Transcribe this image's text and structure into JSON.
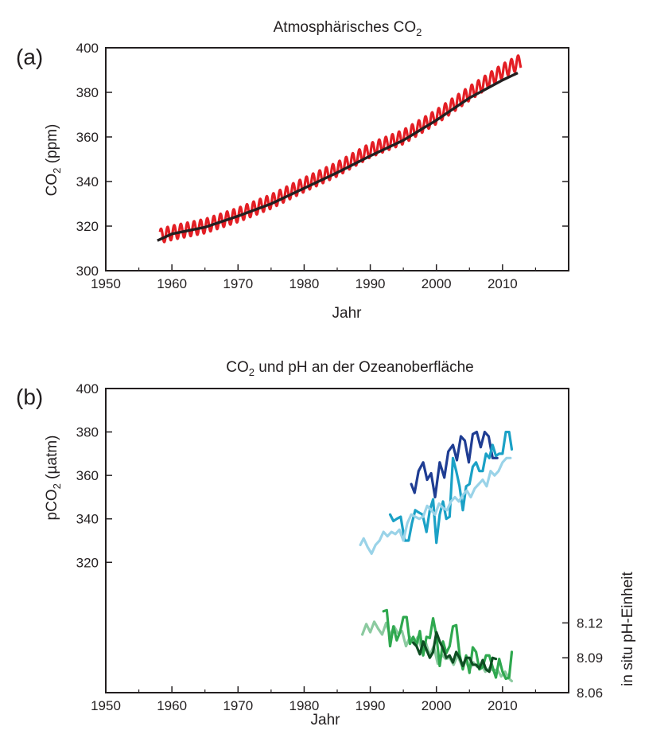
{
  "chart_data": [
    {
      "panel_label": "(a)",
      "type": "line",
      "title": "Atmosphärisches CO",
      "title_sub": "2",
      "xlabel": "Jahr",
      "ylabel": "CO",
      "ylabel_sub": "2",
      "ylabel_unit": " (ppm)",
      "xlim": [
        1950,
        2020
      ],
      "ylim": [
        300,
        400
      ],
      "xticks": [
        1950,
        1960,
        1970,
        1980,
        1990,
        2000,
        2010
      ],
      "yticks": [
        300,
        320,
        340,
        360,
        380,
        400
      ],
      "grid": false,
      "series": [
        {
          "color": "#e31e24",
          "seasonal_amplitude": 3.2,
          "x": [
            1958.2,
            1960,
            1965,
            1970,
            1975,
            1980,
            1985,
            1990,
            1995,
            2000,
            2005,
            2010,
            2012.8
          ],
          "values": [
            315.5,
            317,
            320,
            325,
            331,
            338.5,
            345.5,
            354,
            360,
            369,
            379.5,
            389.5,
            394
          ]
        },
        {
          "color": "#231f20",
          "seasonal_amplitude": 0,
          "x": [
            1957.8,
            1960,
            1965,
            1970,
            1975,
            1980,
            1985,
            1990,
            1995,
            2000,
            2005,
            2010,
            2012.5
          ],
          "values": [
            313.5,
            316.5,
            319.5,
            324.5,
            330,
            337,
            344,
            351.5,
            358.5,
            367.5,
            377.5,
            385.5,
            389
          ]
        }
      ]
    },
    {
      "panel_label": "(b)",
      "type": "line",
      "title": "CO",
      "title_sub": "2",
      "title_rest": " und pH an der Ozeanoberfläche",
      "xlabel": "Jahr",
      "ylabel": "pCO",
      "ylabel_sub": "2",
      "ylabel_unit": " (µatm)",
      "y2label": "in situ pH-Einheit",
      "xlim": [
        1950,
        2020
      ],
      "ylim": [
        260,
        400
      ],
      "yticks": [
        320,
        340,
        360,
        380,
        400
      ],
      "y2lim": [
        8.06,
        8.16
      ],
      "y2ticks": [
        "8.06",
        "8.09",
        "8.12"
      ],
      "xticks": [
        1950,
        1960,
        1970,
        1980,
        1990,
        2000,
        2010
      ],
      "grid": false,
      "series": [
        {
          "axis": "left",
          "color": "#1f3d93",
          "x": [
            1996.2,
            1996.7,
            1997.3,
            1998,
            1998.6,
            1999.2,
            1999.8,
            2000.5,
            2001.2,
            2001.8,
            2002.5,
            2003.1,
            2003.7,
            2004.3,
            2004.9,
            2005.5,
            2006.1,
            2006.7,
            2007.3,
            2007.9,
            2008.5,
            2009.2
          ],
          "values": [
            356,
            352,
            362,
            366,
            358,
            361,
            350,
            366,
            359,
            371,
            374,
            367,
            378,
            376,
            366,
            379,
            380,
            373,
            380,
            378,
            368,
            368
          ]
        },
        {
          "axis": "left",
          "color": "#1ba1c6",
          "x": [
            1993,
            1993.5,
            1994,
            1994.6,
            1995.2,
            1995.8,
            1996.3,
            1996.8,
            1997.3,
            1997.9,
            1998.5,
            1999,
            1999.5,
            2000,
            2000.5,
            2001,
            2001.5,
            2002,
            2002.5,
            2003,
            2003.5,
            2004,
            2004.5,
            2005,
            2005.5,
            2006,
            2006.5,
            2007,
            2007.5,
            2008,
            2008.5,
            2009,
            2009.5,
            2010,
            2010.5,
            2011,
            2011.4
          ],
          "values": [
            342,
            339,
            340,
            341,
            330,
            330,
            338,
            344,
            343,
            342,
            334,
            344,
            349,
            329,
            342,
            348,
            340,
            341,
            368,
            362,
            355,
            344,
            355,
            356,
            364,
            366,
            362,
            362,
            370,
            368,
            374,
            369,
            370,
            370,
            380,
            380,
            372
          ]
        },
        {
          "axis": "left",
          "color": "#9ad3e8",
          "x": [
            1988.5,
            1989,
            1989.6,
            1990.2,
            1990.8,
            1991.4,
            1992,
            1992.6,
            1993.2,
            1993.8,
            1994.4,
            1995,
            1995.6,
            1996.2,
            1996.8,
            1997.4,
            1998,
            1998.6,
            1999.2,
            1999.8,
            2000.4,
            2001,
            2001.6,
            2002.2,
            2002.8,
            2003.4,
            2004,
            2004.6,
            2005.2,
            2005.8,
            2006.4,
            2007,
            2007.6,
            2008.2,
            2008.8,
            2009.4,
            2010,
            2010.6,
            2011.2
          ],
          "values": [
            328,
            331,
            327,
            324,
            328,
            330,
            334,
            332,
            334,
            333,
            335,
            330,
            338,
            342,
            341,
            340,
            341,
            346,
            344,
            342,
            347,
            345,
            344,
            348,
            350,
            348,
            351,
            353,
            350,
            354,
            356,
            358,
            355,
            362,
            360,
            362,
            366,
            368,
            368
          ]
        },
        {
          "axis": "right",
          "color": "#8ccaa0",
          "x": [
            1988.8,
            1989.4,
            1990,
            1990.6,
            1991.2,
            1991.8,
            1992.4,
            1993,
            1993.6,
            1994.2,
            1994.8,
            1995.4,
            1996,
            1996.6,
            1997.2,
            1997.8,
            1998.4,
            1999,
            1999.6,
            2000.2,
            2000.8,
            2001.4,
            2002,
            2002.6,
            2003.2,
            2003.8,
            2004.4,
            2005,
            2005.6,
            2006.2,
            2006.8,
            2007.4,
            2008,
            2008.6,
            2009.2,
            2009.8,
            2010.4,
            2011,
            2011.4
          ],
          "values": [
            8.11,
            8.119,
            8.112,
            8.121,
            8.115,
            8.11,
            8.12,
            8.109,
            8.117,
            8.111,
            8.113,
            8.1,
            8.108,
            8.102,
            8.108,
            8.097,
            8.103,
            8.092,
            8.1,
            8.085,
            8.093,
            8.089,
            8.09,
            8.084,
            8.092,
            8.084,
            8.088,
            8.08,
            8.086,
            8.082,
            8.084,
            8.078,
            8.081,
            8.079,
            8.08,
            8.074,
            8.078,
            8.072,
            8.07
          ]
        },
        {
          "axis": "right",
          "color": "#2fa84f",
          "x": [
            1992,
            1992.5,
            1993,
            1993.5,
            1994,
            1994.5,
            1995,
            1995.5,
            1996,
            1996.5,
            1997,
            1997.5,
            1998,
            1998.5,
            1999,
            1999.5,
            2000,
            2000.5,
            2001,
            2001.5,
            2002,
            2002.5,
            2003,
            2003.5,
            2004,
            2004.5,
            2005,
            2005.5,
            2006,
            2006.5,
            2007,
            2007.5,
            2008,
            2008.5,
            2009,
            2009.5,
            2010,
            2010.5,
            2011,
            2011.4
          ],
          "values": [
            8.13,
            8.131,
            8.1,
            8.117,
            8.105,
            8.112,
            8.125,
            8.125,
            8.102,
            8.108,
            8.101,
            8.113,
            8.092,
            8.108,
            8.107,
            8.124,
            8.109,
            8.083,
            8.104,
            8.094,
            8.1,
            8.117,
            8.118,
            8.093,
            8.08,
            8.092,
            8.077,
            8.099,
            8.095,
            8.08,
            8.082,
            8.092,
            8.092,
            8.082,
            8.073,
            8.089,
            8.078,
            8.072,
            8.073,
            8.095
          ]
        },
        {
          "axis": "right",
          "color": "#0e4d22",
          "x": [
            1996.5,
            1997,
            1997.5,
            1998,
            1998.5,
            1999,
            1999.5,
            2000,
            2000.5,
            2001,
            2001.5,
            2002,
            2002.5,
            2003,
            2003.5,
            2004,
            2004.5,
            2005,
            2005.5,
            2006,
            2006.5,
            2007,
            2007.5,
            2008,
            2008.5,
            2009
          ],
          "values": [
            8.103,
            8.1,
            8.093,
            8.104,
            8.097,
            8.09,
            8.095,
            8.112,
            8.104,
            8.098,
            8.09,
            8.092,
            8.086,
            8.095,
            8.09,
            8.083,
            8.09,
            8.09,
            8.084,
            8.084,
            8.081,
            8.088,
            8.08,
            8.078,
            8.09,
            8.089
          ]
        }
      ]
    }
  ]
}
